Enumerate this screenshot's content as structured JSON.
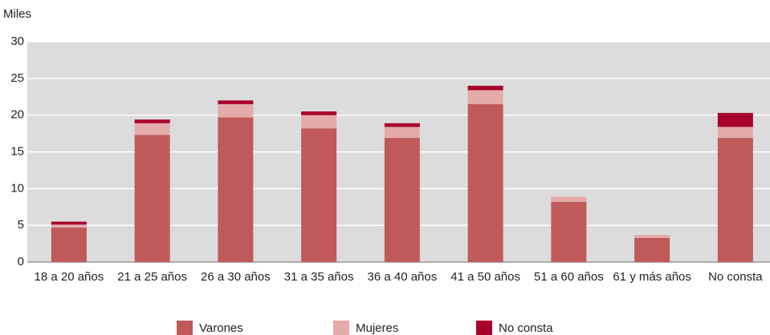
{
  "chart_data": {
    "type": "stacked_bar",
    "y_label": "Miles",
    "categories": [
      "18 a 20 años",
      "21 a 25 años",
      "26 a 30 años",
      "31 a 35 años",
      "36 a 40 años",
      "41 a 50 años",
      "51 a 60 años",
      "61 y más años",
      "No consta"
    ],
    "series": [
      {
        "name": "Varones",
        "color": "#c0595a",
        "values": [
          4.7,
          17.3,
          19.7,
          18.2,
          16.9,
          21.5,
          8.2,
          3.3,
          16.9
        ]
      },
      {
        "name": "Mujeres",
        "color": "#e5aaaa",
        "values": [
          0.4,
          1.6,
          1.8,
          1.8,
          1.5,
          1.9,
          0.7,
          0.4,
          1.5
        ]
      },
      {
        "name": "No consta",
        "color": "#a8002a",
        "values": [
          0.4,
          0.5,
          0.5,
          0.5,
          0.5,
          0.6,
          0,
          0,
          1.9
        ]
      }
    ],
    "ylim": [
      0,
      30
    ],
    "yticks": [
      0,
      5,
      10,
      15,
      20,
      25,
      30
    ],
    "grid": true
  }
}
